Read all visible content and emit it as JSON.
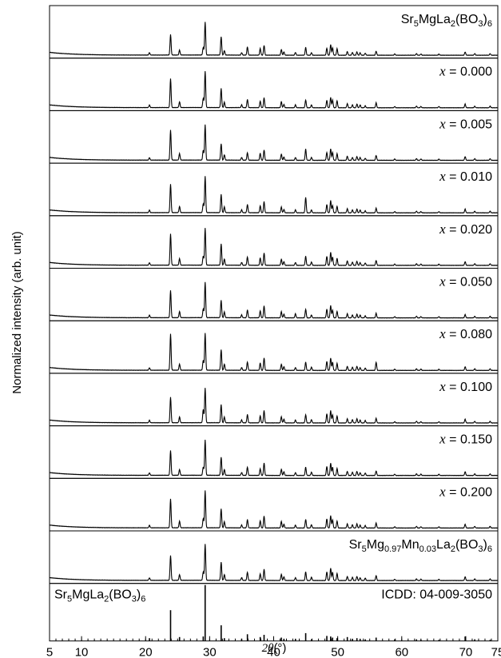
{
  "chart_data": {
    "type": "line",
    "xlabel_symbol": "2θ",
    "xlabel_unit": "(°)",
    "ylabel": "Normalized intensity (arb. unit)",
    "xlim": [
      5,
      75
    ],
    "xticks": [
      5,
      10,
      20,
      30,
      40,
      50,
      60,
      70,
      75
    ],
    "x_minor_step": 1,
    "panel_layout": "stacked",
    "peaks_2theta": [
      20.6,
      23.9,
      25.3,
      29.0,
      29.3,
      31.8,
      32.3,
      35.0,
      35.9,
      37.9,
      38.5,
      41.2,
      41.6,
      43.4,
      45.0,
      45.9,
      48.3,
      48.9,
      49.2,
      49.9,
      51.5,
      52.3,
      53.0,
      53.5,
      54.3,
      56.0,
      58.9,
      62.3,
      63.0,
      65.8,
      69.9,
      71.4,
      73.8
    ],
    "reference": {
      "name": "ICDD: 04-009-3050",
      "phase_base": "Sr",
      "phase_sub1": "5",
      "phase_mid": "MgLa",
      "phase_sub2": "2",
      "phase_mid2": "(BO",
      "phase_sub3": "3",
      "phase_end": ")",
      "phase_sub4": "6",
      "relative_intensity": [
        5,
        55,
        7,
        8,
        100,
        28,
        5,
        4,
        12,
        7,
        11,
        6,
        4,
        4,
        14,
        3,
        9,
        8,
        6,
        5,
        7,
        4,
        5,
        4,
        3,
        6,
        3,
        3,
        2,
        2,
        8,
        3,
        2
      ]
    },
    "series": [
      {
        "label_kind": "formula",
        "f": [
          "Sr",
          "5",
          "MgLa",
          "2",
          "(BO",
          "3",
          ")",
          "6"
        ],
        "intensity": [
          6,
          50,
          12,
          18,
          80,
          45,
          11,
          6,
          20,
          16,
          24,
          14,
          8,
          7,
          19,
          6,
          17,
          26,
          18,
          16,
          9,
          7,
          8,
          6,
          5,
          10,
          3,
          4,
          3,
          3,
          8,
          4,
          4
        ]
      },
      {
        "label_kind": "x",
        "value": "0.000",
        "intensity": [
          6,
          70,
          14,
          22,
          88,
          46,
          13,
          7,
          20,
          16,
          24,
          15,
          8,
          7,
          19,
          7,
          18,
          25,
          19,
          17,
          10,
          7,
          9,
          7,
          5,
          12,
          3,
          4,
          3,
          3,
          9,
          4,
          4
        ]
      },
      {
        "label_kind": "x",
        "value": "0.005",
        "intensity": [
          6,
          73,
          16,
          24,
          86,
          40,
          13,
          7,
          18,
          17,
          25,
          15,
          8,
          7,
          27,
          7,
          19,
          28,
          19,
          16,
          10,
          7,
          9,
          7,
          5,
          12,
          3,
          4,
          3,
          3,
          9,
          4,
          4
        ]
      },
      {
        "label_kind": "x",
        "value": "0.010",
        "intensity": [
          6,
          69,
          15,
          21,
          88,
          44,
          14,
          7,
          20,
          17,
          27,
          14,
          8,
          7,
          38,
          7,
          20,
          30,
          18,
          16,
          10,
          7,
          9,
          7,
          5,
          11,
          3,
          4,
          3,
          3,
          9,
          4,
          4
        ]
      },
      {
        "label_kind": "x",
        "value": "0.020",
        "intensity": [
          6,
          76,
          16,
          22,
          90,
          52,
          15,
          7,
          20,
          18,
          30,
          15,
          9,
          7,
          22,
          8,
          22,
          32,
          20,
          17,
          11,
          8,
          10,
          7,
          6,
          12,
          3,
          4,
          3,
          3,
          9,
          4,
          4
        ]
      },
      {
        "label_kind": "x",
        "value": "0.050",
        "intensity": [
          6,
          66,
          15,
          21,
          86,
          42,
          14,
          7,
          19,
          17,
          29,
          15,
          9,
          10,
          21,
          7,
          21,
          30,
          19,
          16,
          10,
          7,
          9,
          7,
          5,
          11,
          3,
          4,
          3,
          3,
          8,
          4,
          4
        ]
      },
      {
        "label_kind": "x",
        "value": "0.080",
        "intensity": [
          6,
          88,
          15,
          24,
          90,
          50,
          15,
          7,
          20,
          18,
          30,
          15,
          9,
          7,
          20,
          8,
          22,
          30,
          20,
          17,
          10,
          8,
          10,
          7,
          6,
          20,
          3,
          4,
          3,
          3,
          9,
          4,
          4
        ]
      },
      {
        "label_kind": "x",
        "value": "0.100",
        "intensity": [
          6,
          62,
          14,
          32,
          84,
          44,
          14,
          7,
          20,
          17,
          30,
          15,
          9,
          7,
          20,
          8,
          22,
          30,
          20,
          17,
          10,
          8,
          10,
          7,
          6,
          11,
          3,
          4,
          3,
          3,
          9,
          4,
          4
        ]
      },
      {
        "label_kind": "x",
        "value": "0.150",
        "intensity": [
          6,
          60,
          14,
          20,
          86,
          44,
          14,
          7,
          20,
          16,
          30,
          15,
          9,
          7,
          20,
          8,
          22,
          30,
          20,
          17,
          10,
          8,
          10,
          7,
          6,
          11,
          3,
          4,
          3,
          3,
          9,
          4,
          4
        ]
      },
      {
        "label_kind": "x",
        "value": "0.200",
        "intensity": [
          6,
          70,
          16,
          22,
          90,
          46,
          15,
          7,
          20,
          17,
          29,
          16,
          9,
          7,
          21,
          8,
          22,
          30,
          20,
          17,
          10,
          8,
          10,
          7,
          6,
          12,
          3,
          4,
          3,
          3,
          9,
          4,
          4
        ]
      },
      {
        "label_kind": "formula",
        "f": [
          "Sr",
          "5",
          "Mg",
          "0.97",
          "Mn",
          "0.03",
          "La",
          "2",
          "(BO",
          "3",
          ")",
          "6"
        ],
        "intensity": [
          6,
          60,
          14,
          20,
          88,
          44,
          14,
          7,
          20,
          16,
          27,
          15,
          9,
          7,
          21,
          8,
          21,
          30,
          20,
          17,
          10,
          8,
          10,
          7,
          6,
          12,
          3,
          4,
          3,
          3,
          9,
          4,
          4
        ]
      }
    ]
  }
}
